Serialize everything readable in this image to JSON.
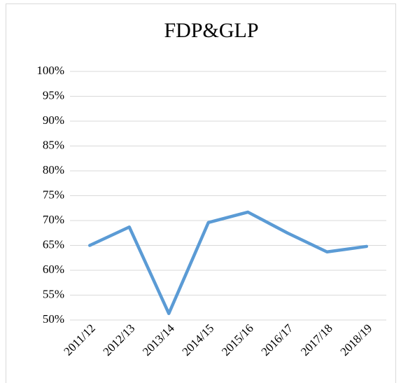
{
  "chart_data": {
    "type": "line",
    "title": "FDP&GLP",
    "categories": [
      "2011/12",
      "2012/13",
      "2013/14",
      "2014/15",
      "2015/16",
      "2016/17",
      "2017/18",
      "2018/19"
    ],
    "series": [
      {
        "name": "FDP&GLP",
        "color": "#5b9bd5",
        "values": [
          65,
          68.7,
          51.3,
          69.6,
          71.7,
          67.5,
          63.7,
          64.8
        ]
      }
    ],
    "ylim": [
      50,
      100
    ],
    "yticks": [
      {
        "value": 50,
        "label": "50%"
      },
      {
        "value": 55,
        "label": "55%"
      },
      {
        "value": 60,
        "label": "60%"
      },
      {
        "value": 65,
        "label": "65%"
      },
      {
        "value": 70,
        "label": "70%"
      },
      {
        "value": 75,
        "label": "75%"
      },
      {
        "value": 80,
        "label": "80%"
      },
      {
        "value": 85,
        "label": "85%"
      },
      {
        "value": 90,
        "label": "90%"
      },
      {
        "value": 95,
        "label": "95%"
      },
      {
        "value": 100,
        "label": "100%"
      }
    ],
    "grid": true
  }
}
